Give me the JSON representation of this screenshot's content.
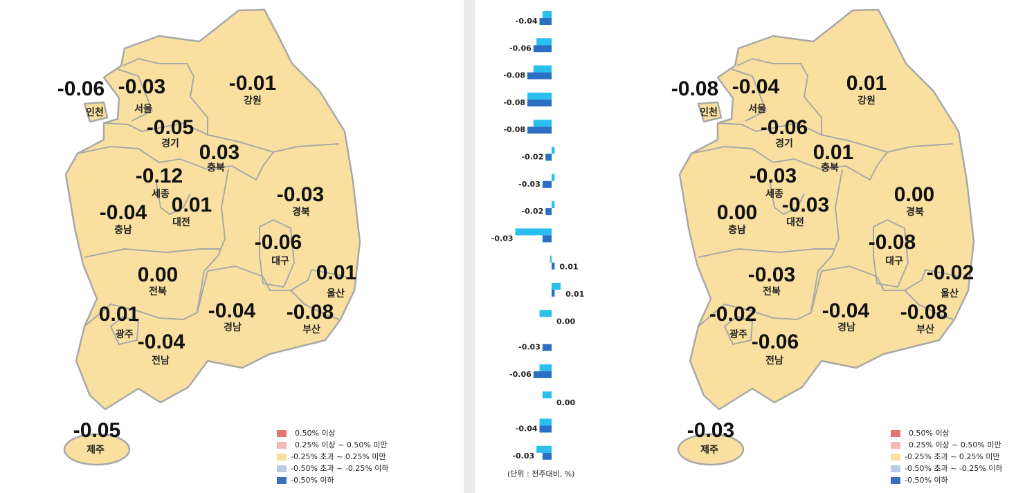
{
  "maps": [
    {
      "regions": [
        {
          "name": "인천",
          "value": "-0.06"
        },
        {
          "name": "서울",
          "value": "-0.03"
        },
        {
          "name": "강원",
          "value": "-0.01"
        },
        {
          "name": "경기",
          "value": "-0.05"
        },
        {
          "name": "충북",
          "value": "0.03"
        },
        {
          "name": "세종",
          "value": "-0.12"
        },
        {
          "name": "충남",
          "value": "-0.04"
        },
        {
          "name": "대전",
          "value": "0.01"
        },
        {
          "name": "경북",
          "value": "-0.03"
        },
        {
          "name": "대구",
          "value": "-0.06"
        },
        {
          "name": "울산",
          "value": "0.01"
        },
        {
          "name": "전북",
          "value": "0.00"
        },
        {
          "name": "광주",
          "value": "0.01"
        },
        {
          "name": "경남",
          "value": "-0.04"
        },
        {
          "name": "부산",
          "value": "-0.08"
        },
        {
          "name": "전남",
          "value": "-0.04"
        },
        {
          "name": "제주",
          "value": "-0.05"
        }
      ],
      "legend": [
        {
          "label": "0.50% 이상",
          "color": "#e57373"
        },
        {
          "label": "0.25% 이상 ~ 0.50% 미만",
          "color": "#f4b8b8"
        },
        {
          "label": "-0.25% 초과 ~ 0.25% 미만",
          "color": "#fae0a0"
        },
        {
          "label": "-0.50% 초과 ~ -0.25% 이하",
          "color": "#b8cbe6"
        },
        {
          "label": "-0.50% 이하",
          "color": "#3d6fc0"
        }
      ]
    },
    {
      "regions": [
        {
          "name": "인천",
          "value": "-0.08"
        },
        {
          "name": "서울",
          "value": "-0.04"
        },
        {
          "name": "강원",
          "value": "0.01"
        },
        {
          "name": "경기",
          "value": "-0.06"
        },
        {
          "name": "충북",
          "value": "0.01"
        },
        {
          "name": "세종",
          "value": "-0.03"
        },
        {
          "name": "충남",
          "value": "0.00"
        },
        {
          "name": "대전",
          "value": "-0.03"
        },
        {
          "name": "경북",
          "value": "0.00"
        },
        {
          "name": "대구",
          "value": "-0.08"
        },
        {
          "name": "울산",
          "value": "-0.02"
        },
        {
          "name": "전북",
          "value": "-0.03"
        },
        {
          "name": "광주",
          "value": "-0.02"
        },
        {
          "name": "경남",
          "value": "-0.04"
        },
        {
          "name": "부산",
          "value": "-0.08"
        },
        {
          "name": "전남",
          "value": "-0.06"
        },
        {
          "name": "제주",
          "value": "-0.03"
        }
      ],
      "legend": [
        {
          "label": "0.50% 이상",
          "color": "#e57373"
        },
        {
          "label": "0.25% 이상 ~ 0.50% 미만",
          "color": "#f4b8b8"
        },
        {
          "label": "-0.25% 초과 ~ 0.25% 미만",
          "color": "#fae0a0"
        },
        {
          "label": "-0.50% 초과 ~ -0.25% 이하",
          "color": "#b8cbe6"
        },
        {
          "label": "-0.50% 이하",
          "color": "#3d6fc0"
        }
      ]
    }
  ],
  "chart_data": {
    "type": "bar",
    "orientation": "horizontal",
    "unit_note": "(단위 : 전주대비, %)",
    "series": [
      {
        "color": "#29c0f0",
        "values": [
          -0.03,
          -0.05,
          -0.06,
          -0.08,
          -0.06,
          0.01,
          0.01,
          0.01,
          -0.12,
          -0.005,
          0.03,
          -0.04,
          0.0,
          -0.04,
          -0.03,
          -0.04,
          -0.05
        ]
      },
      {
        "color": "#2b6fc4",
        "values": [
          -0.04,
          -0.06,
          -0.08,
          -0.08,
          -0.08,
          -0.02,
          -0.03,
          -0.02,
          -0.03,
          0.01,
          0.01,
          0.0,
          -0.03,
          -0.06,
          0.0,
          -0.04,
          -0.03
        ],
        "value_labels": [
          "-0.04",
          "-0.06",
          "-0.08",
          "-0.08",
          "-0.08",
          "-0.02",
          "-0.03",
          "-0.02",
          "-0.03",
          "0.01",
          "0.01",
          "0.00",
          "-0.03",
          "-0.06",
          "0.00",
          "-0.04",
          "-0.03"
        ]
      }
    ]
  }
}
